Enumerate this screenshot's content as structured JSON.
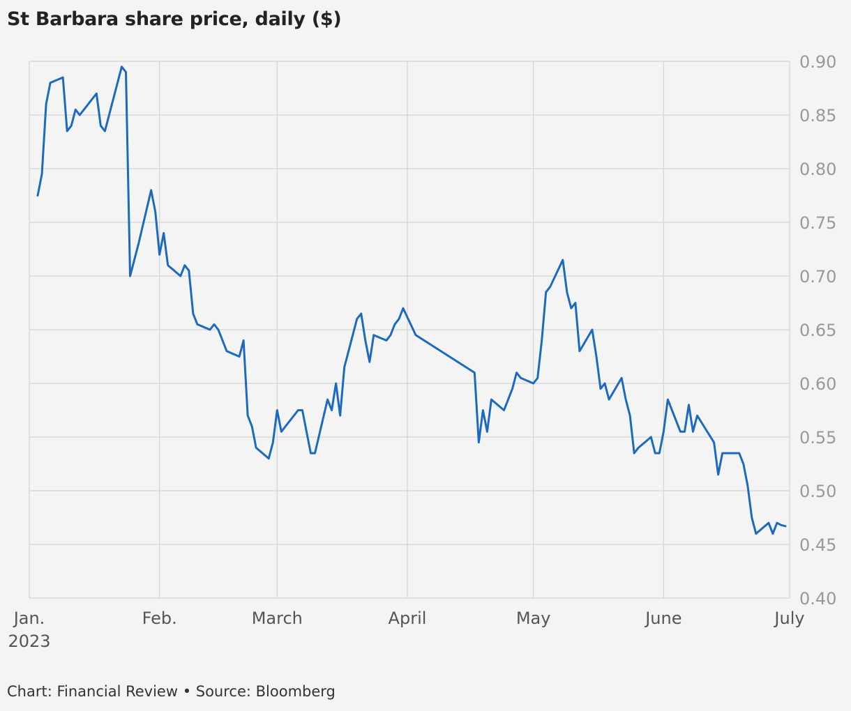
{
  "footer": "Chart: Financial Review • Source: Bloomberg",
  "chart_data": {
    "type": "line",
    "title": "St Barbara share price, daily ($)",
    "xlabel": "",
    "ylabel": "",
    "ylim": [
      0.4,
      0.9
    ],
    "y_ticks": [
      0.4,
      0.45,
      0.5,
      0.55,
      0.6,
      0.65,
      0.7,
      0.75,
      0.8,
      0.85,
      0.9
    ],
    "y_tick_labels": [
      "0.40",
      "0.45",
      "0.50",
      "0.55",
      "0.60",
      "0.65",
      "0.70",
      "0.75",
      "0.80",
      "0.85",
      "0.90"
    ],
    "x_range": [
      "2023-01-01",
      "2023-07-01"
    ],
    "x_ticks": [
      {
        "date": "2023-01-01",
        "label": "Jan.",
        "sublabel": "2023"
      },
      {
        "date": "2023-02-01",
        "label": "Feb."
      },
      {
        "date": "2023-03-01",
        "label": "March"
      },
      {
        "date": "2023-04-01",
        "label": "April"
      },
      {
        "date": "2023-05-01",
        "label": "May"
      },
      {
        "date": "2023-06-01",
        "label": "June"
      },
      {
        "date": "2023-07-01",
        "label": "July"
      }
    ],
    "grid": true,
    "colors": {
      "line": "#1b6ac0",
      "grid": "#d9d9d9",
      "axis_text": "#999999",
      "month_text": "#555555"
    },
    "series": [
      {
        "x": [
          "2023-01-03",
          "2023-01-04",
          "2023-01-05",
          "2023-01-06",
          "2023-01-09",
          "2023-01-10",
          "2023-01-11",
          "2023-01-12",
          "2023-01-13",
          "2023-01-17",
          "2023-01-18",
          "2023-01-19",
          "2023-01-20",
          "2023-01-23",
          "2023-01-24",
          "2023-01-25",
          "2023-01-27",
          "2023-01-30",
          "2023-01-31",
          "2023-02-01",
          "2023-02-02",
          "2023-02-03",
          "2023-02-06",
          "2023-02-07",
          "2023-02-08",
          "2023-02-09",
          "2023-02-10",
          "2023-02-13",
          "2023-02-14",
          "2023-02-15",
          "2023-02-16",
          "2023-02-17",
          "2023-02-20",
          "2023-02-21",
          "2023-02-22",
          "2023-02-23",
          "2023-02-24",
          "2023-02-27",
          "2023-02-28",
          "2023-03-01",
          "2023-03-02",
          "2023-03-03",
          "2023-03-06",
          "2023-03-07",
          "2023-03-08",
          "2023-03-09",
          "2023-03-10",
          "2023-03-13",
          "2023-03-14",
          "2023-03-15",
          "2023-03-16",
          "2023-03-17",
          "2023-03-20",
          "2023-03-21",
          "2023-03-22",
          "2023-03-23",
          "2023-03-24",
          "2023-03-27",
          "2023-03-28",
          "2023-03-29",
          "2023-03-30",
          "2023-03-31",
          "2023-04-03",
          "2023-04-17",
          "2023-04-18",
          "2023-04-19",
          "2023-04-20",
          "2023-04-21",
          "2023-04-24",
          "2023-04-26",
          "2023-04-27",
          "2023-04-28",
          "2023-05-01",
          "2023-05-02",
          "2023-05-03",
          "2023-05-04",
          "2023-05-05",
          "2023-05-08",
          "2023-05-09",
          "2023-05-10",
          "2023-05-11",
          "2023-05-12",
          "2023-05-15",
          "2023-05-16",
          "2023-05-17",
          "2023-05-18",
          "2023-05-19",
          "2023-05-22",
          "2023-05-23",
          "2023-05-24",
          "2023-05-25",
          "2023-05-26",
          "2023-05-29",
          "2023-05-30",
          "2023-05-31",
          "2023-06-01",
          "2023-06-02",
          "2023-06-05",
          "2023-06-06",
          "2023-06-07",
          "2023-06-08",
          "2023-06-09",
          "2023-06-13",
          "2023-06-14",
          "2023-06-15",
          "2023-06-16",
          "2023-06-19",
          "2023-06-20",
          "2023-06-21",
          "2023-06-22",
          "2023-06-23",
          "2023-06-26",
          "2023-06-27",
          "2023-06-28",
          "2023-06-29",
          "2023-06-30"
        ],
        "y": [
          0.775,
          0.795,
          0.86,
          0.88,
          0.885,
          0.835,
          0.84,
          0.855,
          0.85,
          0.87,
          0.84,
          0.835,
          0.85,
          0.895,
          0.89,
          0.7,
          0.73,
          0.78,
          0.76,
          0.72,
          0.74,
          0.71,
          0.7,
          0.71,
          0.705,
          0.665,
          0.655,
          0.65,
          0.655,
          0.65,
          0.64,
          0.63,
          0.625,
          0.64,
          0.57,
          0.56,
          0.54,
          0.53,
          0.545,
          0.575,
          0.555,
          0.56,
          0.575,
          0.575,
          0.555,
          0.535,
          0.535,
          0.585,
          0.575,
          0.6,
          0.57,
          0.615,
          0.66,
          0.665,
          0.64,
          0.62,
          0.645,
          0.64,
          0.645,
          0.655,
          0.66,
          0.67,
          0.645,
          0.61,
          0.545,
          0.575,
          0.555,
          0.585,
          0.575,
          0.595,
          0.61,
          0.605,
          0.6,
          0.605,
          0.64,
          0.685,
          0.69,
          0.715,
          0.685,
          0.67,
          0.675,
          0.63,
          0.65,
          0.625,
          0.595,
          0.6,
          0.585,
          0.605,
          0.585,
          0.57,
          0.535,
          0.54,
          0.55,
          0.535,
          0.535,
          0.555,
          0.585,
          0.555,
          0.555,
          0.58,
          0.555,
          0.57,
          0.545,
          0.515,
          0.535,
          0.535,
          0.535,
          0.525,
          0.505,
          0.475,
          0.46,
          0.47,
          0.46,
          0.47,
          0.468,
          0.467
        ]
      }
    ]
  }
}
